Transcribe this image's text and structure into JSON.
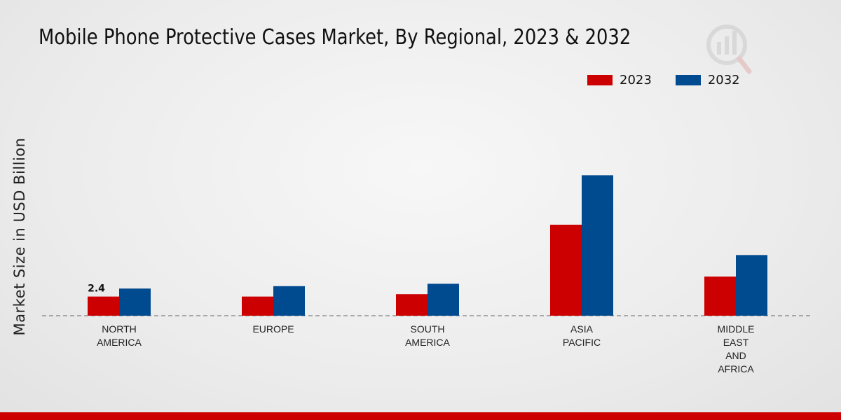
{
  "chart_data": {
    "type": "bar",
    "title": "Mobile Phone Protective Cases Market, By Regional, 2023 & 2032",
    "xlabel": "",
    "ylabel": "Market Size in USD Billion",
    "categories": [
      "NORTH\nAMERICA",
      "EUROPE",
      "SOUTH\nAMERICA",
      "ASIA\nPACIFIC",
      "MIDDLE\nEAST\nAND\nAFRICA"
    ],
    "series": [
      {
        "name": "2023",
        "color": "#cc0000",
        "values": [
          2.4,
          2.4,
          2.7,
          11.4,
          4.9
        ]
      },
      {
        "name": "2032",
        "color": "#004a8f",
        "values": [
          3.4,
          3.7,
          4.0,
          17.6,
          7.6
        ]
      }
    ],
    "data_labels": [
      {
        "series": 0,
        "index": 0,
        "text": "2.4"
      }
    ],
    "ylim": [
      0,
      30
    ],
    "grid": false,
    "legend": "top-right"
  }
}
